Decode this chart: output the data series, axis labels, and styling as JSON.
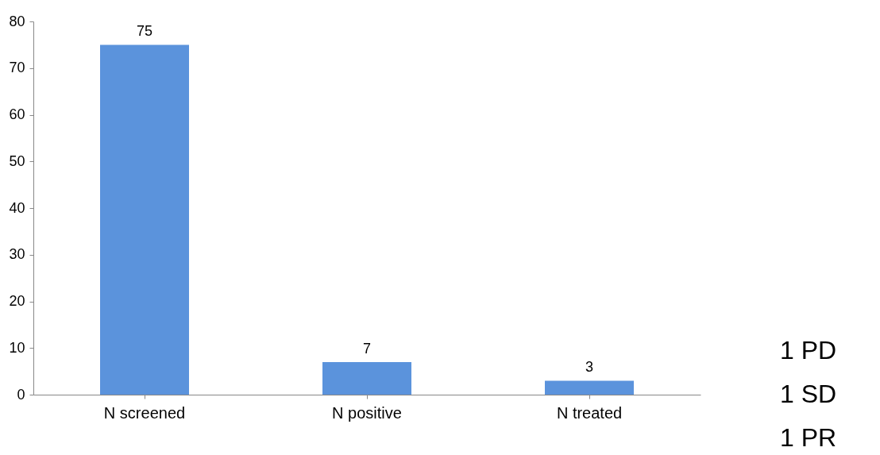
{
  "chart_data": {
    "type": "bar",
    "categories": [
      "N screened",
      "N positive",
      "N treated"
    ],
    "values": [
      75,
      7,
      3
    ],
    "color": "#5b93dc",
    "ylim": [
      0,
      80
    ],
    "yticks": [
      0,
      10,
      20,
      30,
      40,
      50,
      60,
      70,
      80
    ],
    "grid": false,
    "data_labels": true,
    "annotations": [
      "1 PD",
      "1 SD",
      "1 PR"
    ]
  }
}
